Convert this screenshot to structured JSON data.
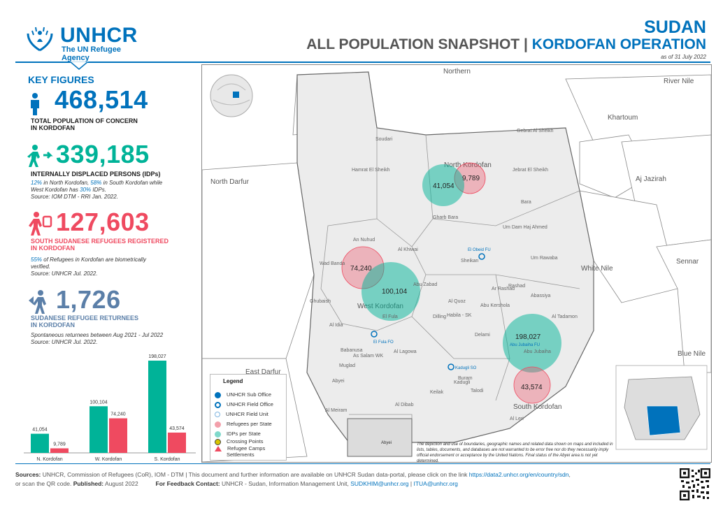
{
  "header": {
    "logo_word": "UNHCR",
    "logo_sub": "The UN Refugee Agency",
    "country": "SUDAN",
    "title_main": "ALL POPULATION SNAPSHOT",
    "title_sep": "|",
    "title_operation": "KORDOFAN OPERATION",
    "as_of": "as of 31 July 2022"
  },
  "key_figures": {
    "title": "KEY FIGURES",
    "total": {
      "value": "468,514",
      "label_1": "TOTAL POPULATION OF CONCERN",
      "label_2": "IN KORDOFAN"
    },
    "idps": {
      "value": "339,185",
      "label": "INTERNALLY DISPLACED PERSONS (IDPs)",
      "note_p1": "12%",
      "note_p1_text": " in North Kordofan, ",
      "note_p2": "58%",
      "note_p2_text": " in South Kordofan while",
      "note_line2a": "West Kordofan has ",
      "note_p3": "30%",
      "note_line2b": " IDPs.",
      "source": "Source: IOM DTM - RRI Jan. 2022."
    },
    "refugees": {
      "value": "127,603",
      "label_1": "SOUTH SUDANESE REFUGEES REGISTERED",
      "label_2": "IN KORDOFAN",
      "note_p1": "55%",
      "note_text": " of Refugees in Kordofan are biometrically",
      "note_line2": "verified.",
      "source": "Source: UNHCR Jul. 2022."
    },
    "returnees": {
      "value": "1,726",
      "label_1": "SUDANESE REFUGEE RETURNEES",
      "label_2": "IN KORDOFAN",
      "note": "Spontaneous returnees between Aug 2021 - Jul 2022",
      "source": "Source: UNHCR Jul. 2022."
    }
  },
  "chart_data": {
    "type": "bar",
    "categories": [
      "N. Kordofan",
      "W. Kordofan",
      "S. Kordofan"
    ],
    "series": [
      {
        "name": "IDPs",
        "color": "#00b398",
        "values": [
          41054,
          100104,
          198027
        ],
        "labels": [
          "41,054",
          "100,104",
          "198,027"
        ]
      },
      {
        "name": "Refugees",
        "color": "#ef4a60",
        "values": [
          9789,
          74240,
          43574
        ],
        "labels": [
          "9,789",
          "74,240",
          "43,574"
        ]
      }
    ]
  },
  "map": {
    "regions": {
      "northern": "Northern",
      "river_nile": "River Nile",
      "khartoum": "Khartoum",
      "aj_jazirah": "Aj Jazirah",
      "sennar": "Sennar",
      "white_nile": "White Nile",
      "blue_nile": "Blue Nile",
      "north_darfur": "North Darfur",
      "east_darfur": "East Darfur",
      "north_kordofan": "North Kordofan",
      "west_kordofan": "West Kordofan",
      "south_kordofan": "South Kordofan"
    },
    "localities": [
      "Soudari",
      "Gebrat Al Sheikh",
      "Hamrat El Sheikh",
      "Jebrat El Sheikh",
      "Bara",
      "Gharb Bara",
      "Um Dam Haj Ahmed",
      "Um Rawaba",
      "Sheikan",
      "An Nuhud",
      "Al Khiwai",
      "Wad Banda",
      "Abu Zabad",
      "Ghubaish",
      "Al Idia",
      "As Salam WK",
      "Al Lagowa",
      "Abyei",
      "Al Meiram",
      "Al Dibab",
      "Kadugli",
      "Dilling",
      "Habila - SK",
      "Abu Kershola",
      "Abassiya",
      "Ar Rashad",
      "Al Tadamon",
      "Delami",
      "Al Quoz",
      "Keilak",
      "Talodi",
      "Buram",
      "Al Leri",
      "El Fula",
      "Babanusa",
      "Muglad",
      "Rashad",
      "Abu Jubaiha"
    ],
    "bubbles": [
      {
        "region": "North Kordofan",
        "idps": "41,054",
        "refugees": "9,789"
      },
      {
        "region": "West Kordofan",
        "idps": "100,104",
        "refugees": "74,240"
      },
      {
        "region": "South Kordofan",
        "idps": "198,027",
        "refugees": "43,574"
      }
    ],
    "offices": {
      "el_obeid": "El Obeid FU",
      "el_fula": "El Fula FO",
      "kadugli": "Kadugli SO",
      "abu_jubaiha": "Abu Jubaiha FU"
    },
    "legend": {
      "title": "Legend",
      "items": [
        "UNHCR Sub Office",
        "UNHCR Field Office",
        "UNHCR Field Unit",
        "Refugees per State",
        "IDPs per State",
        "Crossing Points",
        "Refugee Camps",
        "Settlements"
      ]
    },
    "abyei_label": "Abyei",
    "disclaimer": "The depiction and use of boundaries, geographic names and related data shown on maps and included in lists, tables, documents, and databases are not warranted to be error free nor do they necessarily imply official endorsement or acceptance by the United Nations. Final status of the Abyei area is not yet determined."
  },
  "footer": {
    "sources_label": "Sources:",
    "sources_text": " UNHCR, Commission of Refugees (CoR), IOM - DTM | This document and further information are available on UNHCR Sudan data-portal, please click on the link ",
    "sources_link": "https://data2.unhcr.org/en/country/sdn",
    "line2_a": "or scan the QR code. ",
    "published_label": "Published:",
    "published_value": " August 2022",
    "feedback_label": "For Feedback Contact:",
    "feedback_text": " UNHCR - Sudan, Information Management Unit, ",
    "email_1": "SUDKHIM@unhcr.org",
    "email_sep": " | ",
    "email_2": "ITUA@unhcr.org"
  },
  "colors": {
    "brand": "#0072bc",
    "idp": "#00b398",
    "refugee": "#ef4a60",
    "returnee": "#5b7fa8"
  }
}
